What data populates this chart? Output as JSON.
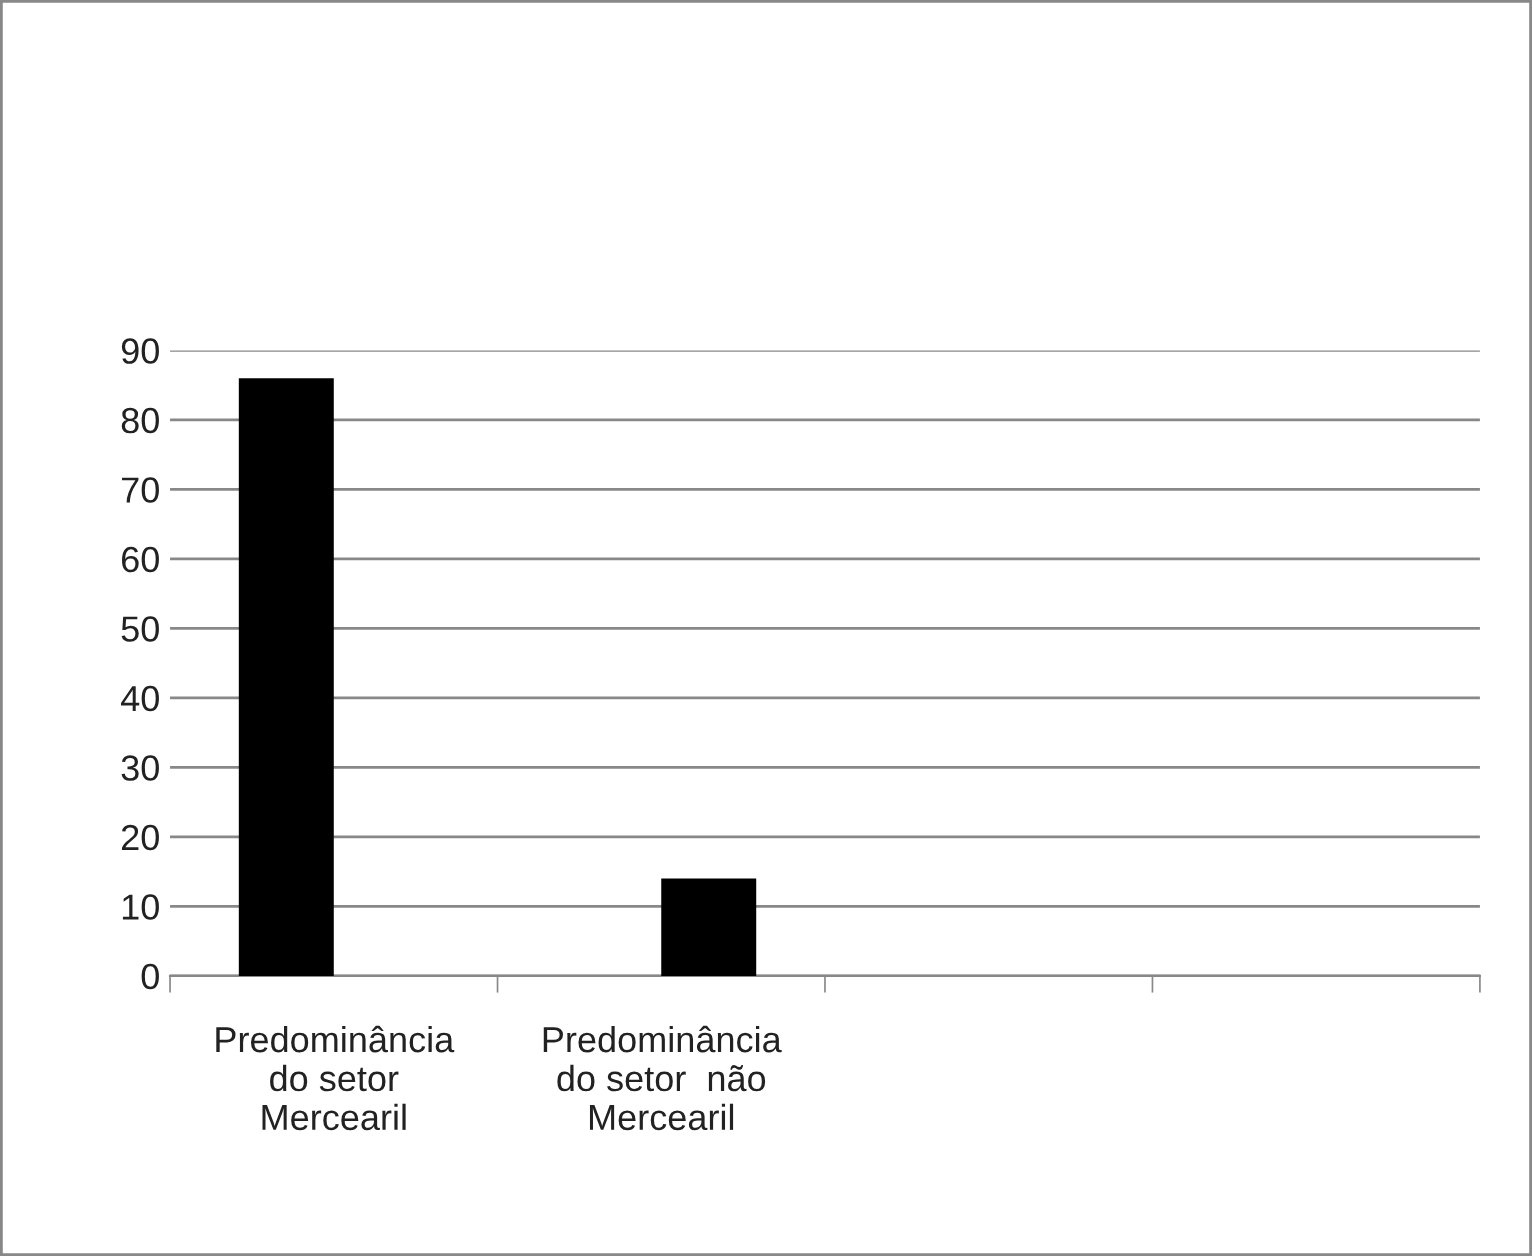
{
  "chart_data": {
    "type": "bar",
    "categories": [
      "Predominância\ndo setor\nMercearil",
      "Predominância\ndo setor  não\nMercearil",
      null,
      null
    ],
    "series": [
      {
        "color": "#000000",
        "values": [
          86,
          null,
          null,
          null
        ]
      },
      {
        "color": "#000000",
        "values": [
          null,
          14,
          null,
          null
        ]
      }
    ],
    "ylim": [
      0,
      90
    ],
    "yticks": [
      0,
      10,
      20,
      30,
      40,
      50,
      60,
      70,
      80,
      90
    ],
    "grid": "y",
    "legend": false
  }
}
